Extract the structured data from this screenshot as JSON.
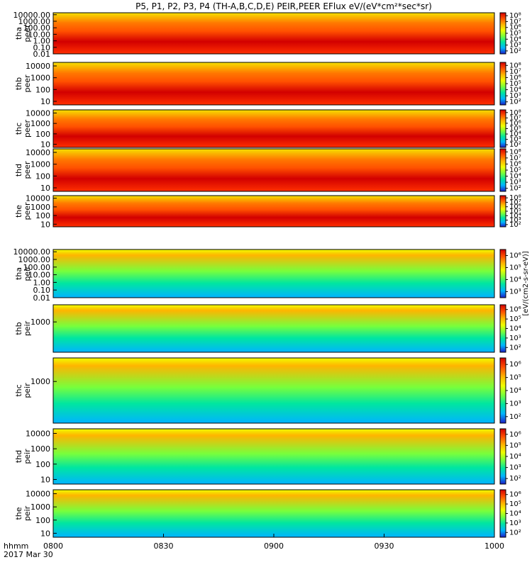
{
  "figure": {
    "title": "P5, P1, P2, P3, P4 (TH-A,B,C,D,E) PEIR,PEER EFlux eV/(eV*cm²*sec*sr)",
    "xaxis_label_line1": "hhmm",
    "xaxis_label_line2": "2017 Mar 30",
    "colorbar_label": "[eV/(cm2-s-sr-eV)]",
    "colors": {
      "background": "#ffffff",
      "colormap": [
        "#1e1ec8",
        "#00b4ff",
        "#00e6a0",
        "#78ff3c",
        "#f0ff00",
        "#ffb400",
        "#ff5000",
        "#d20000"
      ]
    }
  },
  "chart_data": {
    "type": "heatmap",
    "x_ticks": [
      "0800",
      "0830",
      "0900",
      "0930",
      "1000"
    ],
    "x_range": [
      "0800",
      "1000"
    ],
    "panels": [
      {
        "probe": "tha",
        "species": "peer",
        "y_scale": "log",
        "y_range": [
          0.01,
          20000
        ],
        "y_ticks": [
          "10000.00",
          "1000.00",
          "100.00",
          "10.00",
          "1.00",
          "0.10",
          "0.01"
        ],
        "colorbar_ticks": [
          "10⁸",
          "10⁷",
          "10⁶",
          "10⁵",
          "10⁴",
          "10³",
          "10²"
        ]
      },
      {
        "probe": "thb",
        "species": "peer",
        "y_scale": "log",
        "y_range": [
          5,
          20000
        ],
        "y_ticks": [
          "10000",
          "1000",
          "100",
          "10"
        ],
        "colorbar_ticks": [
          "10⁸",
          "10⁷",
          "10⁶",
          "10⁵",
          "10⁴",
          "10³",
          "10²"
        ]
      },
      {
        "probe": "thc",
        "species": "peer",
        "y_scale": "log",
        "y_range": [
          5,
          20000
        ],
        "y_ticks": [
          "10000",
          "1000",
          "100",
          "10"
        ],
        "colorbar_ticks": [
          "10⁸",
          "10⁷",
          "10⁶",
          "10⁵",
          "10⁴",
          "10³",
          "10²"
        ]
      },
      {
        "probe": "thd",
        "species": "peer",
        "y_scale": "log",
        "y_range": [
          5,
          20000
        ],
        "y_ticks": [
          "10000",
          "1000",
          "100",
          "10"
        ],
        "colorbar_ticks": [
          "10⁸",
          "10⁷",
          "10⁶",
          "10⁵",
          "10⁴",
          "10³",
          "10²"
        ]
      },
      {
        "probe": "the",
        "species": "peer",
        "y_scale": "log",
        "y_range": [
          5,
          20000
        ],
        "y_ticks": [
          "10000",
          "1000",
          "100",
          "10"
        ],
        "colorbar_ticks": [
          "10⁸",
          "10⁷",
          "10⁶",
          "10⁵",
          "10⁴",
          "10³",
          "10²"
        ]
      },
      {
        "probe": "tha",
        "species": "peir",
        "y_scale": "log",
        "y_range": [
          0.01,
          20000
        ],
        "y_ticks": [
          "10000.00",
          "1000.00",
          "100.00",
          "10.00",
          "1.00",
          "0.10",
          "0.01"
        ],
        "colorbar_ticks": [
          "10⁶",
          "10⁵",
          "10⁴",
          "10³"
        ]
      },
      {
        "probe": "thb",
        "species": "peir",
        "y_scale": "log",
        "y_range": [
          5,
          20000
        ],
        "y_ticks": [
          "1000"
        ],
        "colorbar_ticks": [
          "10⁶",
          "10⁵",
          "10⁴",
          "10³",
          "10²"
        ]
      },
      {
        "probe": "thc",
        "species": "peir",
        "y_scale": "log",
        "y_range": [
          5,
          20000
        ],
        "y_ticks": [
          "1000"
        ],
        "colorbar_ticks": [
          "10⁶",
          "10⁵",
          "10⁴",
          "10³",
          "10²"
        ]
      },
      {
        "probe": "thd",
        "species": "peir",
        "y_scale": "log",
        "y_range": [
          5,
          20000
        ],
        "y_ticks": [
          "10000",
          "1000",
          "100",
          "10"
        ],
        "colorbar_ticks": [
          "10⁶",
          "10⁵",
          "10⁴",
          "10³",
          "10²"
        ]
      },
      {
        "probe": "the",
        "species": "peir",
        "y_scale": "log",
        "y_range": [
          5,
          20000
        ],
        "y_ticks": [
          "10000",
          "1000",
          "100",
          "10"
        ],
        "colorbar_ticks": [
          "10⁶",
          "10⁵",
          "10⁴",
          "10³",
          "10²"
        ]
      }
    ]
  }
}
